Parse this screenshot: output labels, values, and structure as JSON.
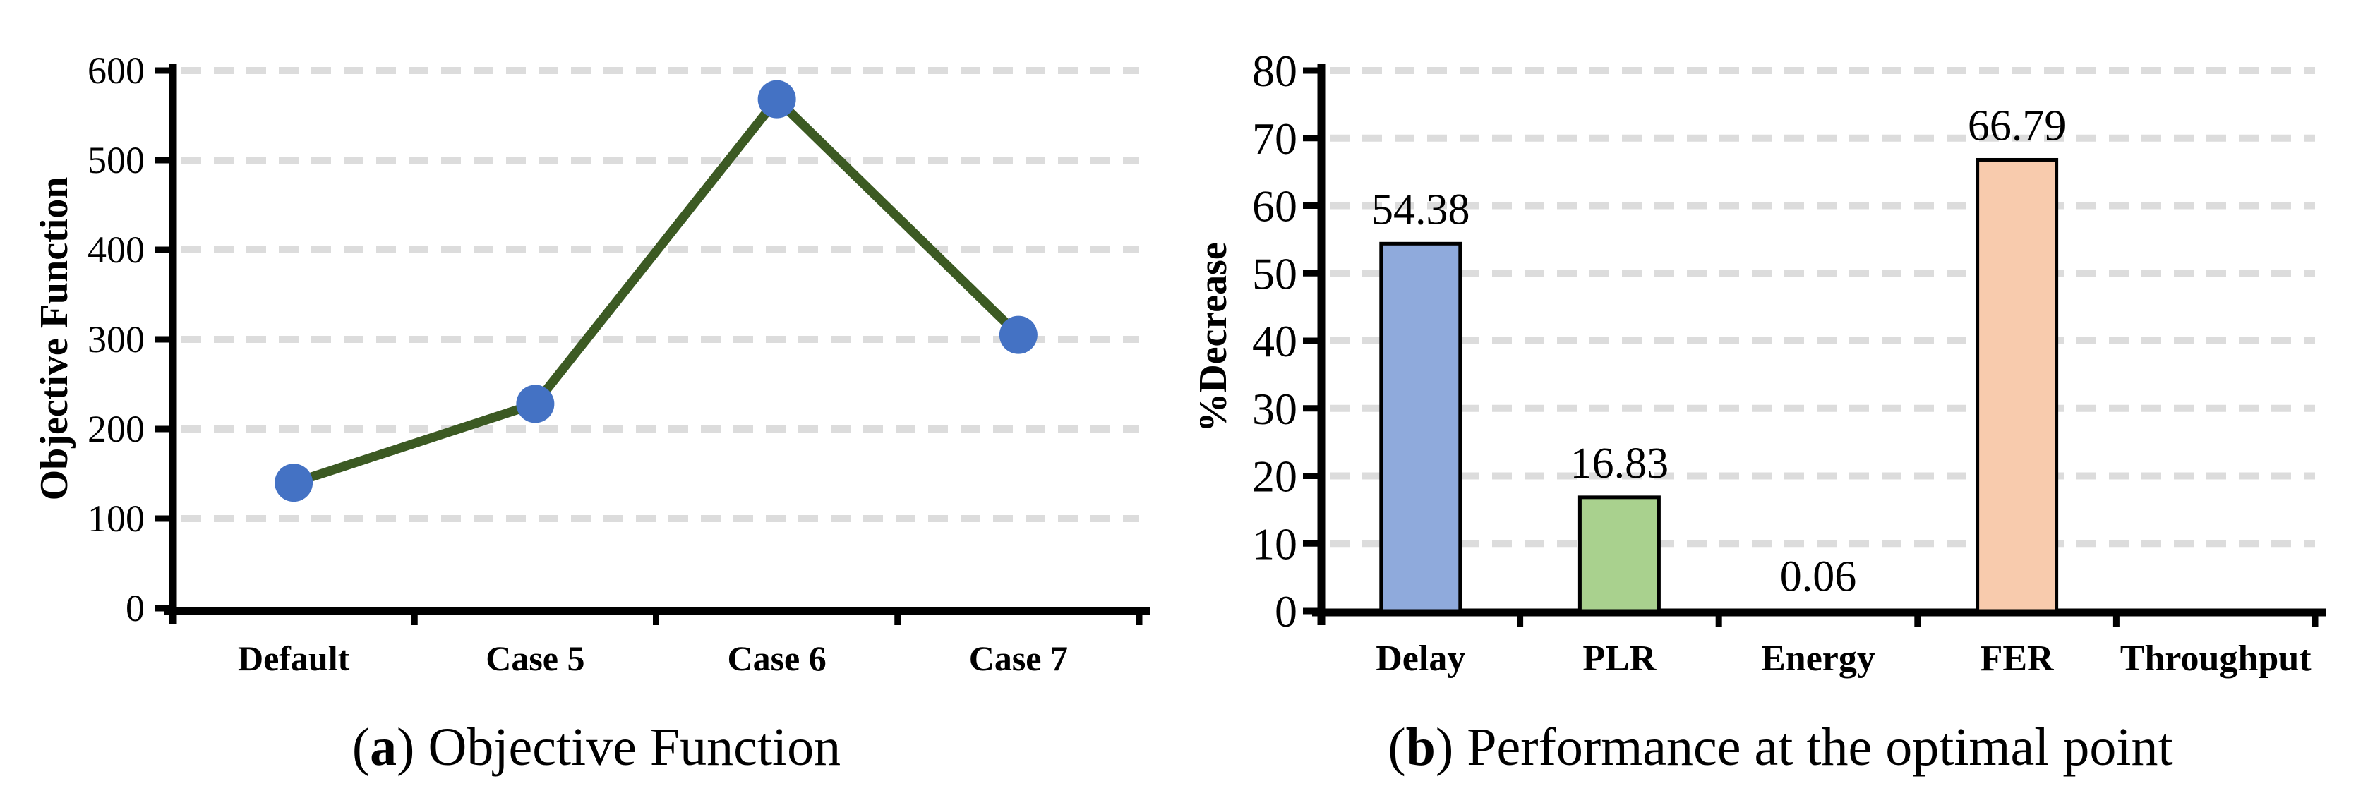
{
  "figure": {
    "captions": {
      "a": {
        "open": "(",
        "label": "a",
        "close": ")",
        "text": " Objective Function"
      },
      "b": {
        "open": "(",
        "label": "b",
        "close": ")",
        "text": " Performance at the optimal point"
      }
    }
  },
  "colors": {
    "axis": "#000000",
    "grid": "#DCDCDC",
    "text": "#000000",
    "background": "#FFFFFF",
    "line_series": "#3C5A23",
    "marker": "#4472C4",
    "bar_delay": "#8FAADC",
    "bar_plr": "#A9D18E",
    "bar_fer": "#F8CBAD"
  },
  "chart_data": [
    {
      "id": "a",
      "type": "line",
      "title": "(a) Objective Function",
      "categories": [
        "Default",
        "Case 5",
        "Case 6",
        "Case 7"
      ],
      "values": [
        140,
        228,
        568,
        305
      ],
      "xlabel": "",
      "ylabel": "Objective Function",
      "ylim": [
        0,
        600
      ],
      "ytick_step": 100,
      "yticks": [
        0,
        100,
        200,
        300,
        400,
        500,
        600
      ],
      "grid": "horizontal-dashed",
      "legend": "none",
      "line_color": "#3C5A23",
      "marker_color": "#4472C4",
      "marker_shape": "circle"
    },
    {
      "id": "b",
      "type": "bar",
      "title": "(b) Performance at the optimal point",
      "categories": [
        "Delay",
        "PLR",
        "Energy",
        "FER",
        "Throughput"
      ],
      "values": [
        54.38,
        16.83,
        0.06,
        66.79,
        0
      ],
      "data_labels": [
        "54.38",
        "16.83",
        "0.06",
        "66.79",
        ""
      ],
      "xlabel": "",
      "ylabel": "%Decrease",
      "ylim": [
        0,
        80
      ],
      "ytick_step": 10,
      "yticks": [
        0,
        10,
        20,
        30,
        40,
        50,
        60,
        70,
        80
      ],
      "grid": "horizontal-dashed",
      "legend": "none",
      "bar_colors": [
        "#8FAADC",
        "#A9D18E",
        null,
        "#F8CBAD",
        null
      ]
    }
  ]
}
